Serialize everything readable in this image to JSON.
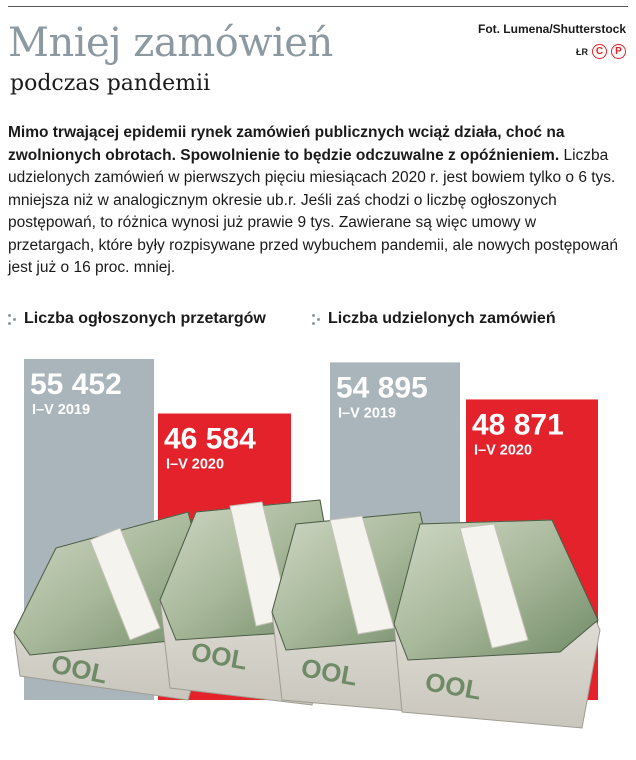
{
  "header": {
    "title": "Mniej zamówień",
    "subtitle": "podczas pandemii",
    "photo_credit": "Fot. Lumena/Shutterstock",
    "author_initials": "ŁR",
    "badge_c": "C",
    "badge_p": "P"
  },
  "lead": {
    "bold_text": "Mimo trwającej epidemii rynek zamówień publicznych wciąż działa, choć na zwolnionych obrotach. Spowolnienie to będzie odczuwalne z opóźnieniem.",
    "body_text": " Liczba udzielonych zamówień w pierwszych pięciu miesiącach 2020 r. jest bowiem tylko o 6 tys. mniejsza niż w analogicznym okresie ub.r. Jeśli zaś chodzi o liczbę ogłoszonych postępowań, to różnica wynosi już prawie 9 tys. Zawierane są więc umowy w przetargach, które były rozpisywane przed wybuchem pandemii, ale nowych postępowań jest już o 16 proc. mniej."
  },
  "colors": {
    "bar_2019": "#a9b5bb",
    "bar_2020": "#e3222b",
    "title": "#8c99a1"
  },
  "chart_data": [
    {
      "type": "bar",
      "title": "Liczba ogłoszonych przetargów",
      "categories": [
        "I–V 2019",
        "I–V 2020"
      ],
      "values": [
        55452,
        46584
      ],
      "value_labels": [
        "55 452",
        "46 584"
      ]
    },
    {
      "type": "bar",
      "title": "Liczba udzielonych zamówień",
      "categories": [
        "I–V 2019",
        "I–V 2020"
      ],
      "values": [
        54895,
        48871
      ],
      "value_labels": [
        "54 895",
        "48 871"
      ]
    }
  ]
}
